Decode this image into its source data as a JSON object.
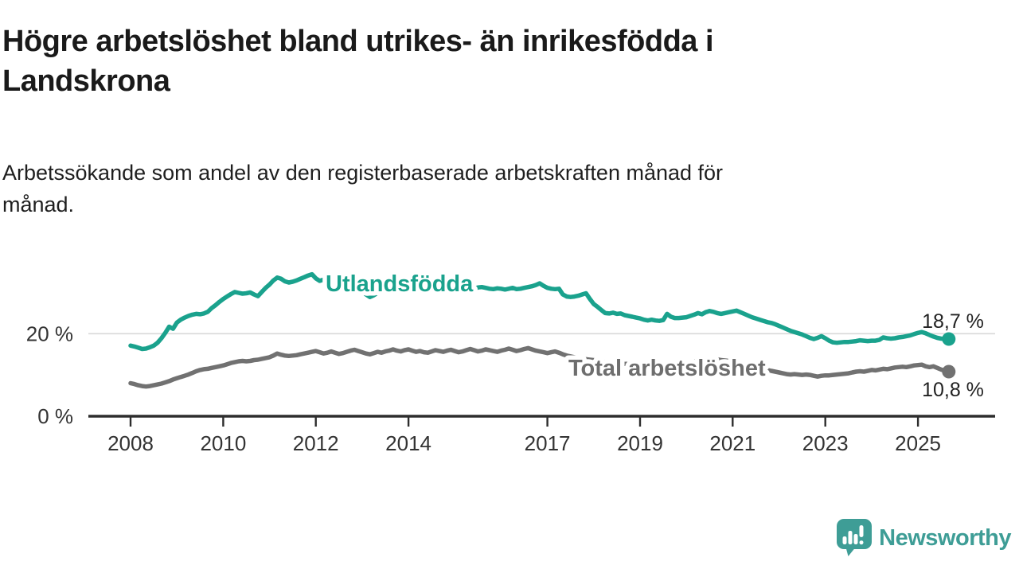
{
  "header": {
    "title_lines": [
      "Högre arbetslöshet bland utrikes- än inrikesfödda i",
      "Landskrona"
    ],
    "subtitle_lines": [
      "Arbetssökande som andel av den registerbaserade arbetskraften månad för",
      "månad."
    ]
  },
  "branding": {
    "logo_text": "Newsworthy",
    "logo_icon": "bar-chart-speech-bubble-icon",
    "brand_color": "#3e9d96"
  },
  "colors": {
    "foreign_born_line": "#1aa28d",
    "total_line": "#717171",
    "total_label": "#6e6e6e",
    "axis": "#2d2d2d",
    "grid": "#d8d8d8",
    "axis_text": "#333333",
    "text": "#1a1a1a"
  },
  "chart_data": {
    "type": "line",
    "x_unit": "monthly, Jan 2008 - Sep 2025",
    "points_per_year": 12,
    "x_start_year": 2008,
    "x_ticks": [
      2008,
      2010,
      2012,
      2014,
      2017,
      2019,
      2021,
      2023,
      2025
    ],
    "y_ticks": [
      {
        "value": 20,
        "label": "20 %"
      },
      {
        "value": 0,
        "label": "0 %"
      }
    ],
    "ylim": [
      0,
      36.5
    ],
    "grid": "horizontal line at 20% only",
    "legend": "inline series labels on chart",
    "series": [
      {
        "name": "Utlandsfödda",
        "color": "#1aa28d",
        "end_label": "18,7 %",
        "end_value": 18.7,
        "values": [
          17.1,
          16.9,
          16.6,
          16.3,
          16.4,
          16.7,
          17.1,
          17.8,
          18.9,
          20.2,
          21.7,
          21.2,
          22.7,
          23.4,
          23.9,
          24.3,
          24.6,
          24.8,
          24.7,
          24.9,
          25.3,
          26.2,
          26.9,
          27.7,
          28.4,
          29.0,
          29.6,
          30.1,
          29.9,
          29.7,
          29.8,
          30.0,
          29.5,
          29.1,
          30.1,
          31.1,
          31.9,
          32.9,
          33.6,
          33.3,
          32.7,
          32.4,
          32.6,
          32.9,
          33.3,
          33.7,
          34.1,
          34.4,
          33.4,
          32.8,
          33.1,
          32.9,
          32.6,
          32.8,
          33.0,
          32.7,
          32.3,
          31.9,
          31.5,
          31.0,
          30.3,
          29.5,
          28.9,
          29.3,
          29.9,
          30.3,
          30.6,
          30.8,
          31.0,
          30.8,
          30.6,
          30.8,
          30.9,
          31.0,
          30.8,
          30.6,
          30.7,
          30.9,
          31.1,
          31.2,
          31.0,
          30.8,
          30.7,
          30.9,
          31.1,
          31.2,
          31.0,
          30.8,
          30.7,
          30.9,
          31.2,
          31.3,
          31.1,
          30.9,
          30.8,
          31.0,
          30.9,
          30.7,
          30.9,
          31.1,
          30.8,
          30.9,
          31.1,
          31.3,
          31.5,
          31.8,
          32.2,
          31.6,
          31.1,
          30.9,
          30.8,
          30.9,
          29.5,
          29.0,
          28.9,
          29.0,
          29.2,
          29.5,
          29.8,
          28.4,
          27.2,
          26.5,
          25.7,
          25.0,
          24.9,
          25.1,
          24.8,
          24.9,
          24.5,
          24.3,
          24.1,
          23.9,
          23.7,
          23.4,
          23.2,
          23.4,
          23.2,
          23.1,
          23.3,
          24.8,
          24.1,
          23.8,
          23.8,
          23.9,
          24.0,
          24.3,
          24.6,
          25.0,
          24.7,
          25.2,
          25.5,
          25.3,
          25.0,
          24.8,
          25.0,
          25.2,
          25.4,
          25.6,
          25.2,
          24.8,
          24.4,
          24.0,
          23.7,
          23.4,
          23.1,
          22.8,
          22.6,
          22.3,
          21.9,
          21.5,
          21.1,
          20.7,
          20.4,
          20.1,
          19.8,
          19.4,
          19.0,
          18.7,
          19.0,
          19.4,
          18.9,
          18.3,
          17.9,
          17.8,
          17.9,
          18.0,
          18.0,
          18.1,
          18.2,
          18.4,
          18.3,
          18.2,
          18.3,
          18.3,
          18.5,
          19.1,
          18.9,
          18.8,
          18.9,
          19.1,
          19.2,
          19.4,
          19.6,
          19.9,
          20.2,
          20.4,
          20.1,
          19.7,
          19.3,
          19.0,
          18.8,
          18.7,
          18.7
        ]
      },
      {
        "name": "Total arbetslöshet",
        "color": "#717171",
        "end_label": "10,8 %",
        "end_value": 10.8,
        "values": [
          8.0,
          7.8,
          7.5,
          7.3,
          7.2,
          7.3,
          7.5,
          7.7,
          7.9,
          8.2,
          8.5,
          8.9,
          9.2,
          9.5,
          9.8,
          10.1,
          10.5,
          10.9,
          11.2,
          11.4,
          11.5,
          11.7,
          11.9,
          12.1,
          12.3,
          12.6,
          12.9,
          13.1,
          13.3,
          13.4,
          13.3,
          13.4,
          13.6,
          13.7,
          13.9,
          14.1,
          14.3,
          14.7,
          15.2,
          14.9,
          14.7,
          14.6,
          14.7,
          14.8,
          15.0,
          15.2,
          15.4,
          15.6,
          15.8,
          15.5,
          15.2,
          15.4,
          15.7,
          15.4,
          15.1,
          15.3,
          15.6,
          15.9,
          16.1,
          15.8,
          15.5,
          15.2,
          15.0,
          15.3,
          15.6,
          15.4,
          15.7,
          15.9,
          16.2,
          15.9,
          15.7,
          16.0,
          16.2,
          15.9,
          15.6,
          15.8,
          15.5,
          15.4,
          15.7,
          16.0,
          15.8,
          15.6,
          15.9,
          16.1,
          15.8,
          15.5,
          15.7,
          16.0,
          16.3,
          16.0,
          15.7,
          15.9,
          16.2,
          16.0,
          15.8,
          15.6,
          15.9,
          16.1,
          16.4,
          16.1,
          15.8,
          16.0,
          16.3,
          16.5,
          16.2,
          15.9,
          15.7,
          15.5,
          15.3,
          15.5,
          15.7,
          15.4,
          15.0,
          14.7,
          14.5,
          14.3,
          14.1,
          13.9,
          13.8,
          13.7,
          13.6,
          13.4,
          13.2,
          13.1,
          13.0,
          12.9,
          12.8,
          12.8,
          12.7,
          12.7,
          12.6,
          12.6,
          12.5,
          12.5,
          12.4,
          12.4,
          12.3,
          12.3,
          12.4,
          12.4,
          12.3,
          12.3,
          12.2,
          12.2,
          12.3,
          12.6,
          13.1,
          13.7,
          14.0,
          14.1,
          14.0,
          13.9,
          13.8,
          13.6,
          13.5,
          13.4,
          13.2,
          13.0,
          12.8,
          12.5,
          12.3,
          12.1,
          11.9,
          11.6,
          11.4,
          11.2,
          11.0,
          10.8,
          10.6,
          10.4,
          10.2,
          10.1,
          10.2,
          10.1,
          10.0,
          10.1,
          10.0,
          9.8,
          9.6,
          9.8,
          9.9,
          9.9,
          10.0,
          10.1,
          10.2,
          10.3,
          10.4,
          10.6,
          10.8,
          10.9,
          10.8,
          11.0,
          11.2,
          11.1,
          11.3,
          11.5,
          11.4,
          11.6,
          11.8,
          11.9,
          12.0,
          11.9,
          12.1,
          12.3,
          12.4,
          12.5,
          12.1,
          11.9,
          12.1,
          11.7,
          11.3,
          11.0,
          10.8
        ]
      }
    ]
  }
}
